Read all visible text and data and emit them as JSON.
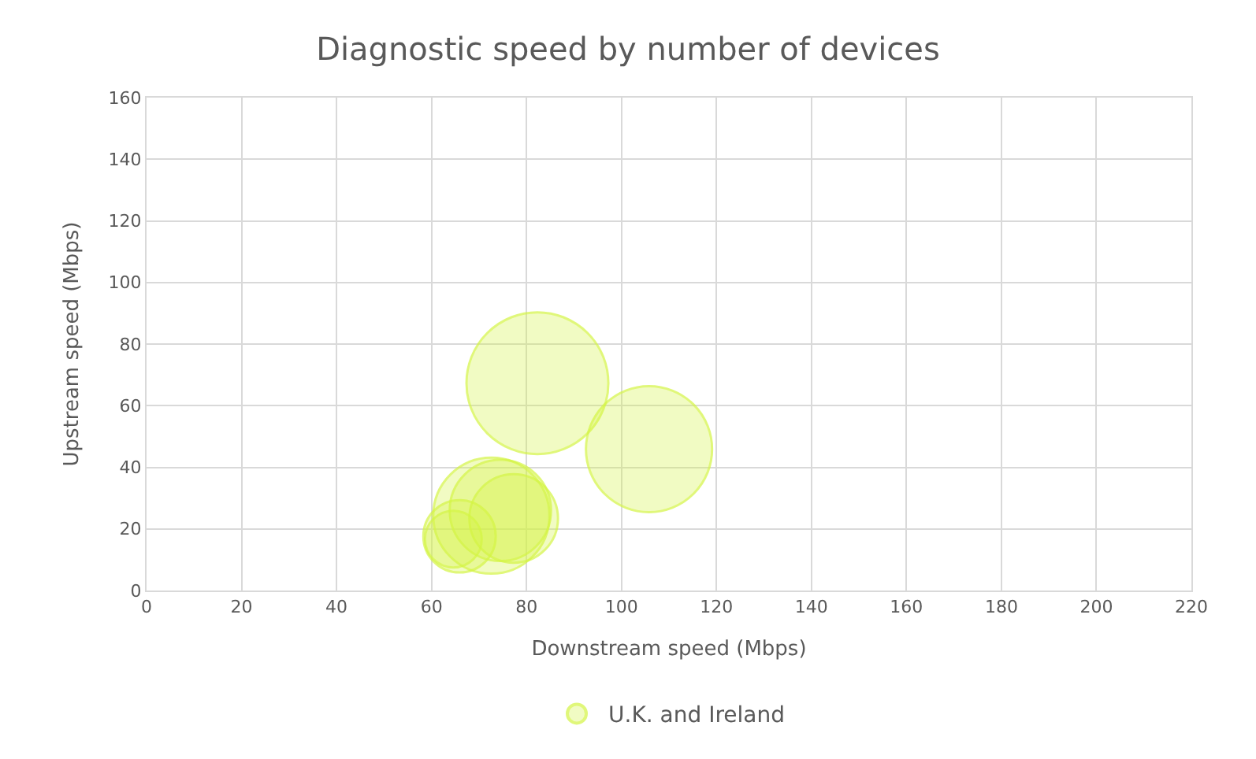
{
  "chart_data": {
    "type": "bubble",
    "title": "Diagnostic speed by number of devices",
    "xlabel": "Downstream speed (Mbps)",
    "ylabel": "Upstream speed (Mbps)",
    "x": [
      82.3,
      105.8,
      72.6,
      74.5,
      77.3,
      65.9,
      64.6
    ],
    "series": [
      {
        "name": "U.K. and Ireland",
        "color": "#d4f542",
        "values": [
          67.3,
          45.9,
          24.3,
          26.0,
          23.4,
          17.6,
          16.7
        ],
        "sizes": [
          1,
          0.79,
          0.67,
          0.51,
          0.39,
          0.26,
          0.16
        ]
      }
    ],
    "xlim": [
      0,
      220
    ],
    "xticks": [
      0,
      20,
      40,
      60,
      80,
      100,
      120,
      140,
      160,
      180,
      200,
      220
    ],
    "ylim": [
      0,
      160
    ],
    "yticks": [
      0,
      20,
      40,
      60,
      80,
      100,
      120,
      140,
      160
    ],
    "grid": true,
    "legend": "bottom"
  }
}
